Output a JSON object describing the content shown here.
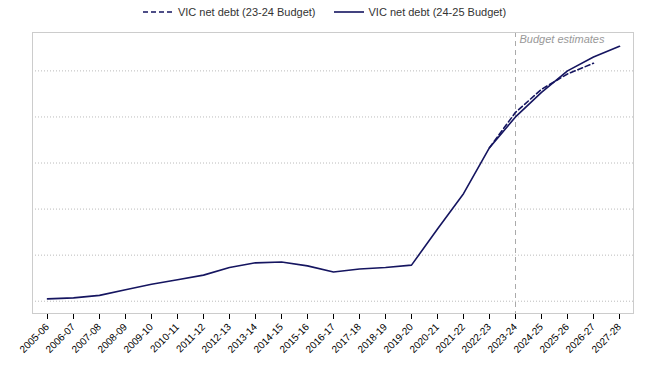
{
  "chart_data": {
    "type": "line",
    "categories": [
      "2005-06",
      "2006-07",
      "2007-08",
      "2008-09",
      "2009-10",
      "2010-11",
      "2011-12",
      "2012-13",
      "2013-14",
      "2014-15",
      "2015-16",
      "2016-17",
      "2017-18",
      "2018-19",
      "2019-20",
      "2020-21",
      "2021-22",
      "2022-23",
      "2023-24",
      "2024-25",
      "2025-26",
      "2026-27",
      "2027-28"
    ],
    "series": [
      {
        "name": "VIC net debt (23-24 Budget)",
        "color": "#151560",
        "line_style": "dashed",
        "values": [
          null,
          null,
          null,
          null,
          null,
          null,
          null,
          null,
          null,
          null,
          null,
          null,
          null,
          null,
          null,
          null,
          null,
          100.0,
          123.0,
          138.0,
          148.0,
          155.0,
          null
        ]
      },
      {
        "name": "VIC net debt (24-25 Budget)",
        "color": "#151560",
        "line_style": "solid",
        "values": [
          1.5,
          2.2,
          3.8,
          7.5,
          11.0,
          14.0,
          17.0,
          22.0,
          25.0,
          25.5,
          23.0,
          19.0,
          21.0,
          22.0,
          23.5,
          47.0,
          70.0,
          100.0,
          120.0,
          136.0,
          150.0,
          159.0,
          166.0
        ]
      }
    ],
    "ylim": [
      -8,
      175
    ],
    "yticks": [
      0,
      30,
      60,
      90,
      120,
      150,
      175
    ],
    "grid": true,
    "tick_labels": "x",
    "legend": "top",
    "annotations": [
      {
        "text": "Budget estimates",
        "x": "2023-24"
      }
    ]
  }
}
